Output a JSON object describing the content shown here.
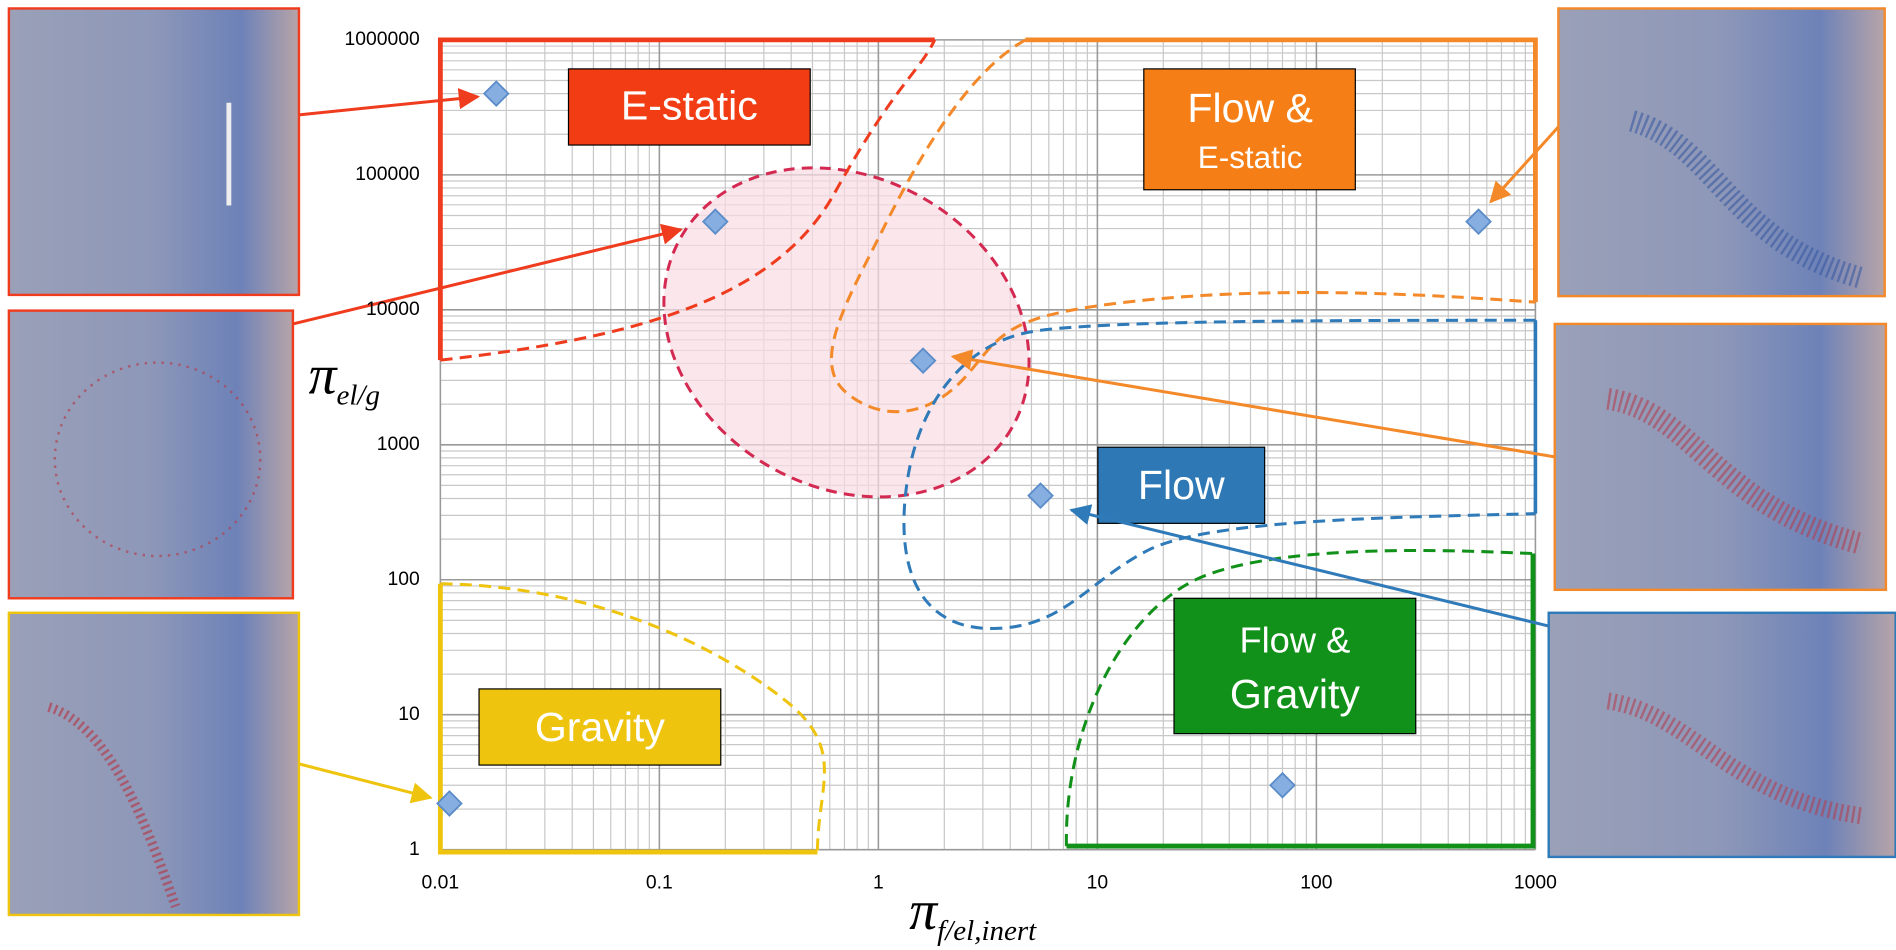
{
  "chart_data": {
    "type": "scatter",
    "x": [
      0.018,
      0.18,
      1.6,
      5.5,
      70,
      0.011,
      550
    ],
    "values": [
      400000,
      45000,
      4200,
      420,
      3,
      2.2,
      45000
    ],
    "color": "#86aee0",
    "xlim": [
      0.01,
      1000
    ],
    "ylim": [
      1,
      1000000
    ],
    "xticks": [
      0.01,
      0.1,
      1,
      10,
      100,
      1000
    ],
    "yticks": [
      1,
      10,
      100,
      1000,
      10000,
      100000,
      1000000
    ],
    "xscale": "log",
    "yscale": "log",
    "grid": true,
    "xlabel": {
      "symbol": "π",
      "subscript": "f/el,inert"
    },
    "ylabel": {
      "symbol": "π",
      "subscript": "el/g"
    },
    "annotations": [
      {
        "lines": [
          "E-static"
        ]
      },
      {
        "lines": [
          "Flow &",
          "E-static"
        ]
      },
      {
        "lines": [
          "Flow"
        ]
      },
      {
        "lines": [
          "Flow &",
          "Gravity"
        ]
      },
      {
        "lines": [
          "Gravity"
        ]
      }
    ]
  }
}
